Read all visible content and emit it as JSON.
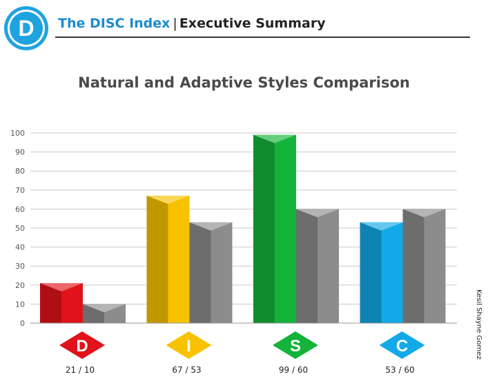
{
  "header": {
    "logo_letter": "D",
    "brand": "The DISC Index",
    "separator": "|",
    "section": "Executive Summary"
  },
  "side_note": "Kesil Shayne Gomez",
  "chart_data": {
    "type": "bar",
    "title": "Natural and Adaptive Styles Comparison",
    "xlabel": "",
    "ylabel": "",
    "ylim": [
      0,
      100
    ],
    "yticks": [
      0,
      10,
      20,
      30,
      40,
      50,
      60,
      70,
      80,
      90,
      100
    ],
    "grid": true,
    "categories": [
      "D",
      "I",
      "S",
      "C"
    ],
    "category_labels": [
      "21 / 10",
      "67 / 53",
      "99 / 60",
      "53 / 60"
    ],
    "series": [
      {
        "values": [
          21,
          67,
          99,
          53
        ],
        "colors": [
          "#e0121b",
          "#f8c200",
          "#14b33a",
          "#12a9e8"
        ]
      },
      {
        "values": [
          10,
          53,
          60,
          60
        ],
        "color": "#8c8c8c"
      }
    ]
  }
}
